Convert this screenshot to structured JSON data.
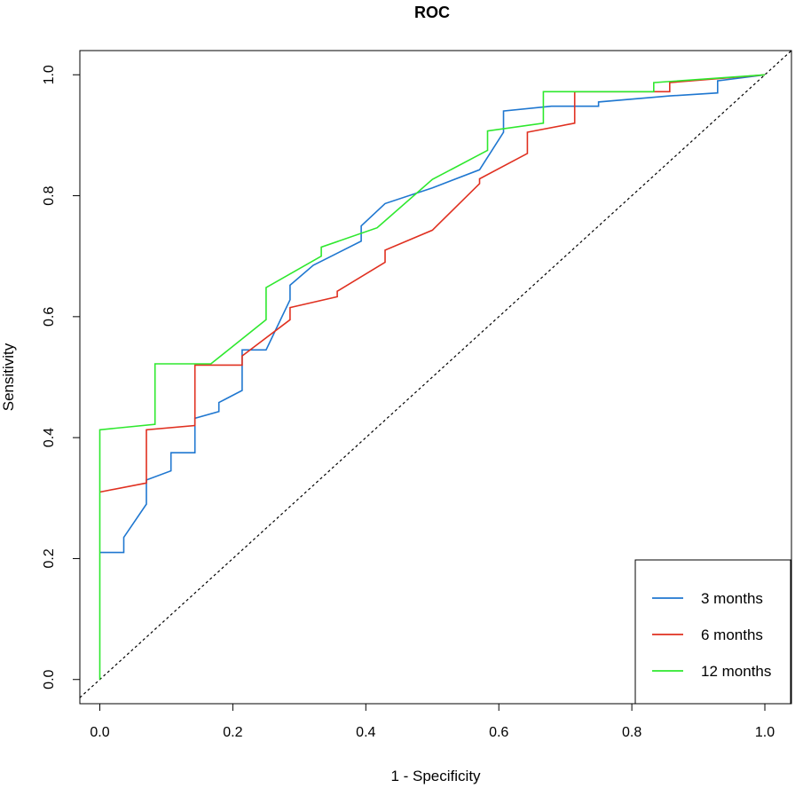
{
  "chart_data": {
    "type": "line",
    "title": "ROC",
    "xlabel": "1 - Specificity",
    "ylabel": "Sensitivity",
    "xlim": [
      -0.03,
      1.04
    ],
    "ylim": [
      -0.04,
      1.04
    ],
    "xticks": [
      0.0,
      0.2,
      0.4,
      0.6,
      0.8,
      1.0
    ],
    "xtick_labels": [
      "0.0",
      "0.2",
      "0.4",
      "0.6",
      "0.8",
      "1.0"
    ],
    "yticks": [
      0.0,
      0.2,
      0.4,
      0.6,
      0.8,
      1.0
    ],
    "ytick_labels": [
      "0.0",
      "0.2",
      "0.4",
      "0.6",
      "0.8",
      "1.0"
    ],
    "legend_position": "bottom-right",
    "reference_line": {
      "style": "dotted",
      "color": "#000000",
      "points": [
        [
          0,
          0
        ],
        [
          1,
          1
        ]
      ]
    },
    "series": [
      {
        "name": "3 months",
        "color": "#1f77d0",
        "points": [
          [
            0,
            0.21
          ],
          [
            0.036,
            0.21
          ],
          [
            0.036,
            0.235
          ],
          [
            0.07,
            0.29
          ],
          [
            0.07,
            0.33
          ],
          [
            0.107,
            0.345
          ],
          [
            0.107,
            0.375
          ],
          [
            0.143,
            0.375
          ],
          [
            0.143,
            0.432
          ],
          [
            0.179,
            0.443
          ],
          [
            0.179,
            0.458
          ],
          [
            0.214,
            0.478
          ],
          [
            0.214,
            0.545
          ],
          [
            0.25,
            0.545
          ],
          [
            0.286,
            0.628
          ],
          [
            0.286,
            0.652
          ],
          [
            0.321,
            0.685
          ],
          [
            0.393,
            0.725
          ],
          [
            0.393,
            0.75
          ],
          [
            0.429,
            0.787
          ],
          [
            0.5,
            0.813
          ],
          [
            0.571,
            0.843
          ],
          [
            0.607,
            0.905
          ],
          [
            0.607,
            0.94
          ],
          [
            0.679,
            0.948
          ],
          [
            0.75,
            0.948
          ],
          [
            0.75,
            0.955
          ],
          [
            0.857,
            0.965
          ],
          [
            0.929,
            0.97
          ],
          [
            0.929,
            0.99
          ],
          [
            1.0,
            1.0
          ]
        ]
      },
      {
        "name": "6 months",
        "color": "#e03020",
        "points": [
          [
            0,
            0.31
          ],
          [
            0.07,
            0.325
          ],
          [
            0.07,
            0.413
          ],
          [
            0.143,
            0.42
          ],
          [
            0.143,
            0.52
          ],
          [
            0.214,
            0.52
          ],
          [
            0.214,
            0.535
          ],
          [
            0.286,
            0.595
          ],
          [
            0.286,
            0.615
          ],
          [
            0.357,
            0.633
          ],
          [
            0.357,
            0.642
          ],
          [
            0.429,
            0.69
          ],
          [
            0.429,
            0.71
          ],
          [
            0.5,
            0.743
          ],
          [
            0.571,
            0.82
          ],
          [
            0.571,
            0.828
          ],
          [
            0.643,
            0.87
          ],
          [
            0.643,
            0.905
          ],
          [
            0.714,
            0.92
          ],
          [
            0.714,
            0.972
          ],
          [
            0.833,
            0.972
          ],
          [
            0.857,
            0.972
          ],
          [
            0.857,
            0.987
          ],
          [
            1.0,
            1.0
          ]
        ]
      },
      {
        "name": "12 months",
        "color": "#2ee82e",
        "points": [
          [
            0,
            0
          ],
          [
            0,
            0.413
          ],
          [
            0.083,
            0.422
          ],
          [
            0.083,
            0.522
          ],
          [
            0.167,
            0.522
          ],
          [
            0.25,
            0.595
          ],
          [
            0.25,
            0.648
          ],
          [
            0.333,
            0.7
          ],
          [
            0.333,
            0.715
          ],
          [
            0.417,
            0.747
          ],
          [
            0.5,
            0.827
          ],
          [
            0.583,
            0.875
          ],
          [
            0.583,
            0.907
          ],
          [
            0.667,
            0.92
          ],
          [
            0.667,
            0.972
          ],
          [
            0.833,
            0.972
          ],
          [
            0.833,
            0.987
          ],
          [
            1.0,
            1.0
          ]
        ]
      }
    ]
  }
}
